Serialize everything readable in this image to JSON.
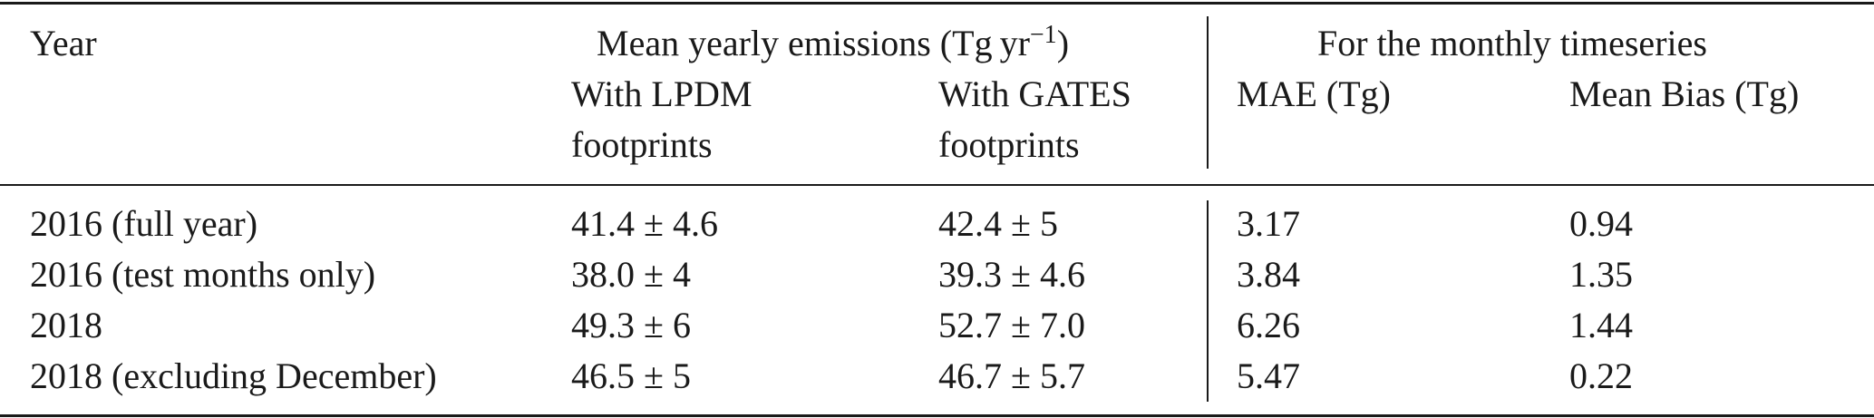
{
  "table": {
    "header": {
      "first": "Year",
      "groups": [
        {
          "parts": [
            "Mean yearly emissions (Tg yr",
            "−1",
            ")"
          ]
        },
        {
          "parts": [
            "For the monthly timeseries"
          ]
        }
      ],
      "columns": [
        [
          "With LPDM",
          "footprints"
        ],
        [
          "With GATES",
          "footprints"
        ],
        [
          "MAE (Tg)"
        ],
        [
          "Mean Bias (Tg)"
        ]
      ]
    },
    "rows": [
      [
        "2016 (full year)",
        "41.4 ± 4.6",
        "42.4 ± 5",
        "3.17",
        "0.94"
      ],
      [
        "2016 (test months only)",
        "38.0 ± 4",
        "39.3 ± 4.6",
        "3.84",
        "1.35"
      ],
      [
        "2018",
        "49.3 ± 6",
        "52.7 ± 7.0",
        "6.26",
        "1.44"
      ],
      [
        "2018 (excluding December)",
        "46.5 ± 5",
        "46.7 ± 5.7",
        "5.47",
        "0.22"
      ]
    ]
  }
}
